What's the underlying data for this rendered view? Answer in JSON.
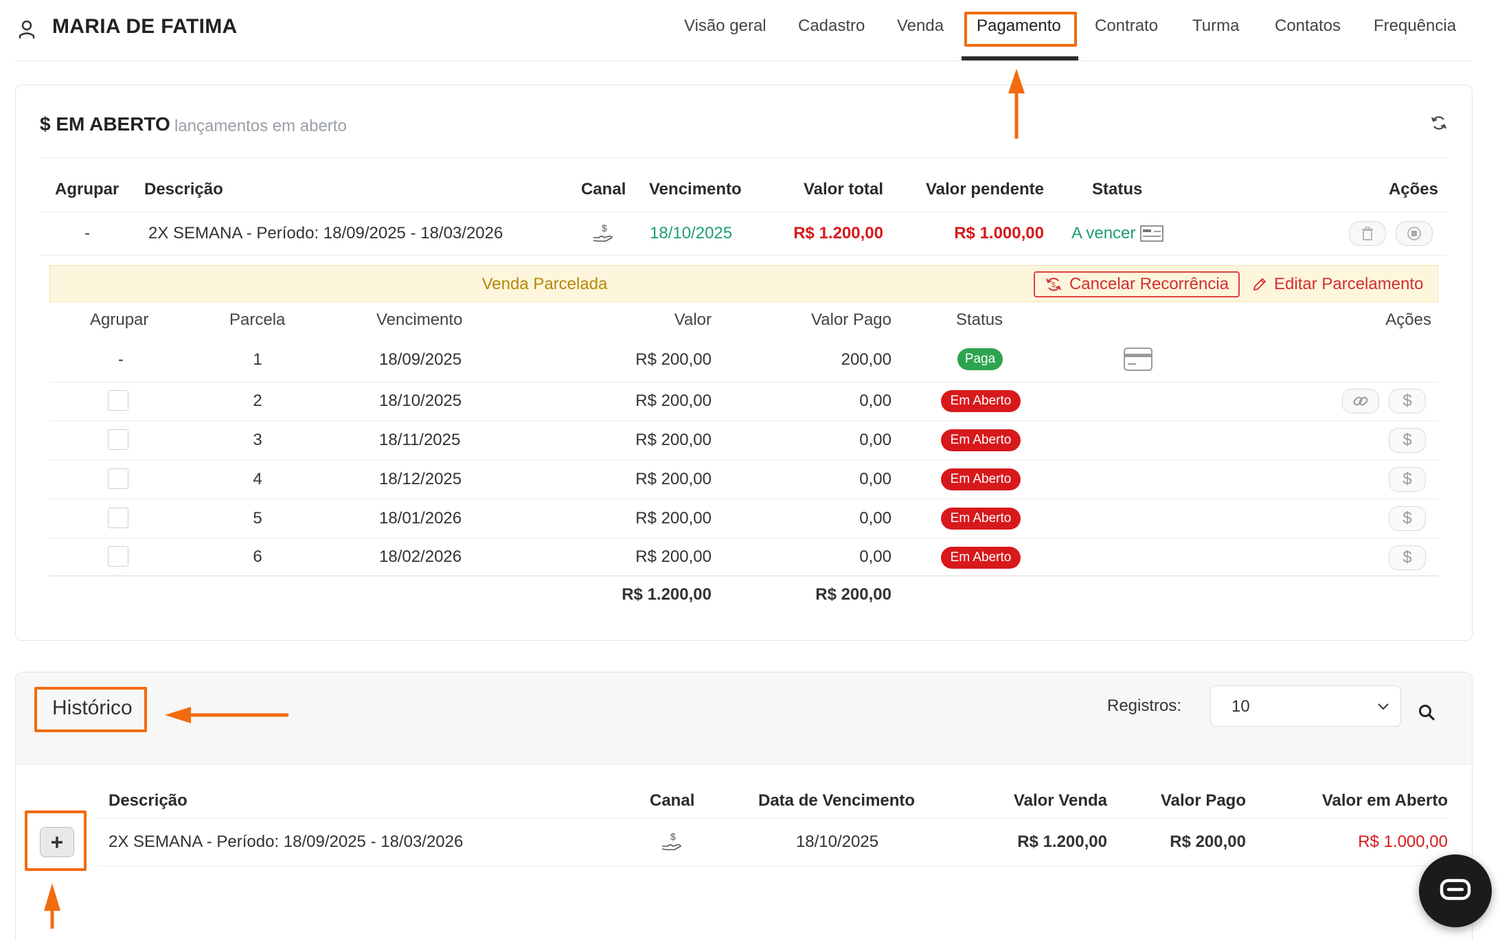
{
  "header": {
    "student_name": "MARIA DE FATIMA",
    "tabs": [
      "Visão geral",
      "Cadastro",
      "Venda",
      "Pagamento",
      "Contrato",
      "Turma",
      "Contatos",
      "Frequência"
    ],
    "active_tab": "Pagamento"
  },
  "open_section": {
    "icon": "$",
    "title": "EM ABERTO",
    "subtitle": "lançamentos em aberto",
    "columns": {
      "group": "Agrupar",
      "description": "Descrição",
      "channel": "Canal",
      "due_date": "Vencimento",
      "total": "Valor total",
      "pending": "Valor pendente",
      "status": "Status",
      "actions": "Ações"
    },
    "row": {
      "group": "-",
      "description": "2X SEMANA - Período: 18/09/2025 - 18/03/2026",
      "due_date": "18/10/2025",
      "total": "R$ 1.200,00",
      "pending": "R$ 1.000,00",
      "status": "A vencer"
    }
  },
  "installments": {
    "banner_label": "Venda Parcelada",
    "cancel_recurrence_label": "Cancelar Recorrência",
    "edit_installments_label": "Editar Parcelamento",
    "columns": {
      "group": "Agrupar",
      "installment": "Parcela",
      "due_date": "Vencimento",
      "value": "Valor",
      "paid": "Valor Pago",
      "status": "Status",
      "actions": "Ações"
    },
    "rows": [
      {
        "group": "-",
        "num": "1",
        "due": "18/09/2025",
        "value": "R$ 200,00",
        "paid": "200,00",
        "status": "Paga"
      },
      {
        "group": "",
        "num": "2",
        "due": "18/10/2025",
        "value": "R$ 200,00",
        "paid": "0,00",
        "status": "Em Aberto"
      },
      {
        "group": "",
        "num": "3",
        "due": "18/11/2025",
        "value": "R$ 200,00",
        "paid": "0,00",
        "status": "Em Aberto"
      },
      {
        "group": "",
        "num": "4",
        "due": "18/12/2025",
        "value": "R$ 200,00",
        "paid": "0,00",
        "status": "Em Aberto"
      },
      {
        "group": "",
        "num": "5",
        "due": "18/01/2026",
        "value": "R$ 200,00",
        "paid": "0,00",
        "status": "Em Aberto"
      },
      {
        "group": "",
        "num": "6",
        "due": "18/02/2026",
        "value": "R$ 200,00",
        "paid": "0,00",
        "status": "Em Aberto"
      }
    ],
    "dollar_symbol": "$",
    "total_value": "R$ 1.200,00",
    "total_paid": "R$ 200,00"
  },
  "history": {
    "title": "Histórico",
    "records_label": "Registros:",
    "records_value": "10",
    "expand_symbol": "+",
    "columns": {
      "description": "Descrição",
      "channel": "Canal",
      "due_date": "Data de Vencimento",
      "sale_value": "Valor Venda",
      "paid_value": "Valor Pago",
      "open_value": "Valor em Aberto"
    },
    "row": {
      "description": "2X SEMANA - Período: 18/09/2025 - 18/03/2026",
      "due_date": "18/10/2025",
      "sale_value": "R$ 1.200,00",
      "paid_value": "R$ 200,00",
      "open_value": "R$ 1.000,00"
    }
  },
  "colors": {
    "accent_annotation": "#f26b0f",
    "danger": "#d7191c",
    "success": "#2ea44f",
    "due_green": "#1f9e6e",
    "banner_bg": "#fdf6dc"
  },
  "icons": [
    "user-icon",
    "refresh-icon",
    "hand-money-icon",
    "card-icon",
    "trash-icon",
    "stop-icon",
    "recurrence-icon",
    "pencil-icon",
    "credit-card-icon",
    "link-icon",
    "search-icon",
    "chevron-down-icon",
    "chat-icon"
  ]
}
